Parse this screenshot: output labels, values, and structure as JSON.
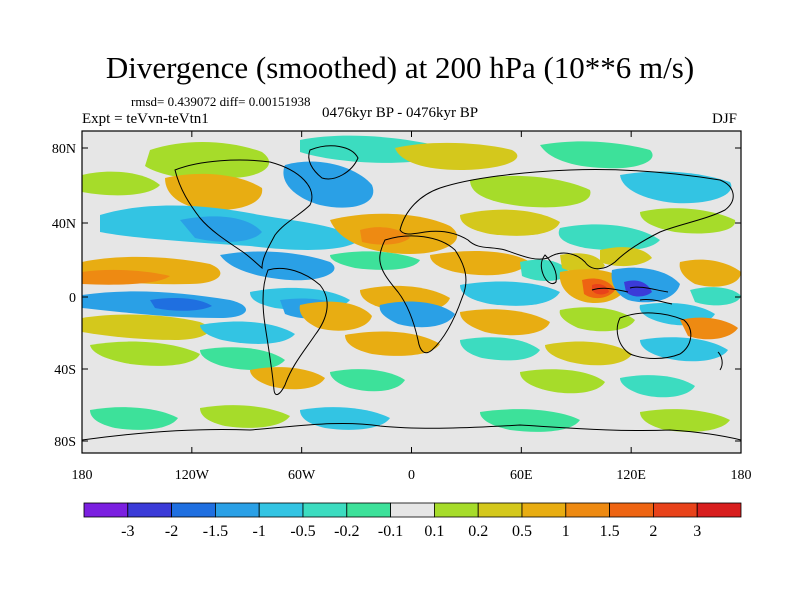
{
  "title": "Divergence (smoothed) at 200 hPa (10**6 m/s)",
  "stats_line": "rmsd= 0.439072 diff= 0.00151938",
  "experiment": "Expt = teVvn-teVtn1",
  "period": "0476kyr BP - 0476kyr BP",
  "season": "DJF",
  "lat_ticks": [
    "80N",
    "40N",
    "0",
    "40S",
    "80S"
  ],
  "lon_ticks": [
    "180",
    "120W",
    "60W",
    "0",
    "60E",
    "120E",
    "180"
  ],
  "colorbar": {
    "labels": [
      "-3",
      "-2",
      "-1.5",
      "-1",
      "-0.5",
      "-0.2",
      "-0.1",
      "0.1",
      "0.2",
      "0.5",
      "1",
      "1.5",
      "2",
      "3"
    ],
    "colors": [
      "#7b1fe0",
      "#3b3bd8",
      "#1f6fe0",
      "#2aa0e6",
      "#33c4e3",
      "#3cdcc0",
      "#3de19a",
      "#e6e6e6",
      "#a6dc2a",
      "#d4c81c",
      "#e8ad12",
      "#ee8a12",
      "#ee6412",
      "#e8421a",
      "#d81e1e"
    ]
  },
  "map_colors": {
    "neutral": "#e6e6e6",
    "coast": "#000000"
  }
}
